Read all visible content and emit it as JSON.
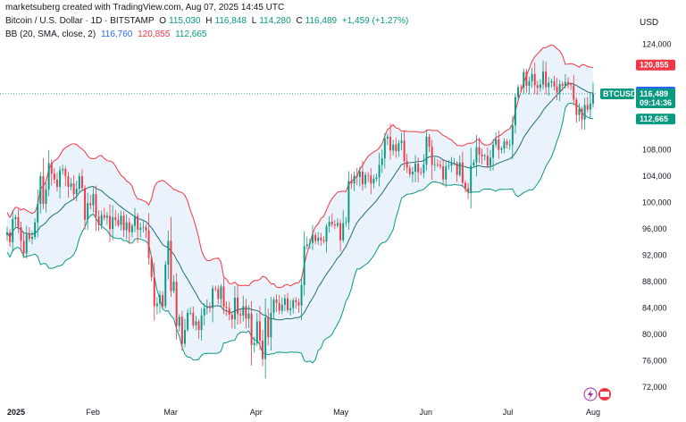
{
  "header": {
    "attribution": "marketsuberg created with TradingView.com, Aug 07, 2025 14:45 UTC",
    "symbol": "Bitcoin / U.S. Dollar · 1D · BITSTAMP",
    "o_label": "O",
    "o_value": "115,030",
    "h_label": "H",
    "h_value": "116,848",
    "l_label": "L",
    "l_value": "114,280",
    "c_label": "C",
    "c_value": "116,489",
    "change": "+1,459 (+1.27%)",
    "indicator_label": "BB (20, SMA, close, 2)",
    "bb_basis": "116,760",
    "bb_upper": "120,855",
    "bb_lower": "112,665"
  },
  "currency": "USD",
  "price_tags": {
    "upper": "120,855",
    "basis": "116,760",
    "last": "116,489",
    "countdown": "09:14:36",
    "lower": "112,665",
    "symbol_tag": "BTCUSD"
  },
  "colors": {
    "up": "#089981",
    "down": "#f23645",
    "basis": "#2962ff",
    "upper": "#f23645",
    "lower": "#089981",
    "fill": "#e8f2fb"
  },
  "chart_data": {
    "type": "candlestick",
    "x_labels": [
      "2025",
      "Feb",
      "Mar",
      "Apr",
      "May",
      "Jun",
      "Jul",
      "Aug"
    ],
    "y_ticks": [
      "124,000",
      "108,000",
      "104,000",
      "100,000",
      "96,000",
      "92,000",
      "88,000",
      "84,000",
      "80,000",
      "76,000",
      "72,000"
    ],
    "ylim": [
      70000,
      128000
    ],
    "closes": [
      95500,
      94000,
      97500,
      97800,
      96300,
      94200,
      92300,
      95200,
      94500,
      94800,
      97000,
      99800,
      104000,
      99800,
      102000,
      106000,
      104400,
      103500,
      102400,
      104900,
      105100,
      104000,
      102400,
      102900,
      101300,
      102100,
      104000,
      102200,
      97400,
      99900,
      99600,
      101300,
      97900,
      96600,
      98100,
      97700,
      98000,
      96000,
      97800,
      97400,
      96600,
      98000,
      95800,
      97000,
      95500,
      96500,
      98000,
      95900,
      96200,
      96300,
      95800,
      91600,
      88700,
      84300,
      84700,
      86000,
      84300,
      90600,
      94200,
      86600,
      88000,
      81300,
      82700,
      78600,
      80700,
      83300,
      83300,
      81400,
      82000,
      80700,
      82900,
      84000,
      84300,
      84000,
      87000,
      86900,
      85400,
      87300,
      84200,
      84000,
      83000,
      82300,
      85600,
      83100,
      82900,
      84300,
      82400,
      83200,
      78400,
      78700,
      82000,
      79100,
      76300,
      82600,
      79600,
      83300,
      85300,
      84800,
      83600,
      84500,
      85500,
      83700,
      84000,
      85200,
      84900,
      84400,
      87500,
      93400,
      93700,
      93900,
      95100,
      94200,
      94700,
      94300,
      94100,
      96400,
      97100,
      96700,
      96500,
      96900,
      94300,
      96900,
      97000,
      103300,
      102900,
      104100,
      103900,
      104700,
      102800,
      104200,
      104100,
      102900,
      103600,
      103800,
      105700,
      106700,
      109700,
      110000,
      107900,
      108800,
      107800,
      109000,
      109400,
      106300,
      105300,
      104300,
      104700,
      105900,
      104600,
      104500,
      105800,
      110000,
      108500,
      105700,
      105800,
      105700,
      105500,
      103500,
      105500,
      105600,
      106000,
      106000,
      104200,
      106100,
      103000,
      102200,
      101600,
      105600,
      106100,
      108400,
      107300,
      107000,
      107100,
      105600,
      106800,
      108800,
      109600,
      108000,
      108200,
      109300,
      108800,
      108800,
      111700,
      116000,
      117500,
      117400,
      119800,
      117700,
      118400,
      119500,
      117800,
      117400,
      117900,
      119900,
      117500,
      118200,
      118400,
      117600,
      116700,
      118000,
      117700,
      118300,
      117900,
      117800,
      115600,
      113300,
      114200,
      112600,
      114800,
      114100,
      115000,
      116489
    ],
    "bb_period": 20,
    "bb_mult": 2,
    "last_price": 116489
  }
}
